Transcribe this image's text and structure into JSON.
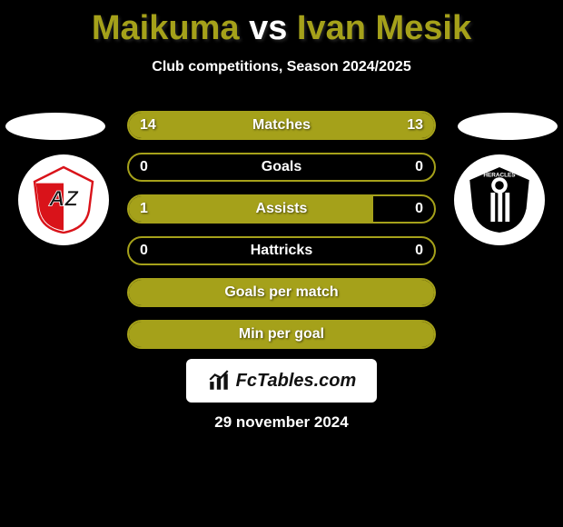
{
  "title": {
    "player1": "Maikuma",
    "vs": "vs",
    "player2": "Ivan Mesik"
  },
  "subtitle": "Club competitions, Season 2024/2025",
  "accent_color": "#a5a11a",
  "stats": [
    {
      "label": "Matches",
      "left_val": "14",
      "right_val": "13",
      "left_pct": 52,
      "right_pct": 48
    },
    {
      "label": "Goals",
      "left_val": "0",
      "right_val": "0",
      "left_pct": 0,
      "right_pct": 0
    },
    {
      "label": "Assists",
      "left_val": "1",
      "right_val": "0",
      "left_pct": 80,
      "right_pct": 0
    },
    {
      "label": "Hattricks",
      "left_val": "0",
      "right_val": "0",
      "left_pct": 0,
      "right_pct": 0
    },
    {
      "label": "Goals per match",
      "left_val": "",
      "right_val": "",
      "left_pct": 100,
      "right_pct": 0
    },
    {
      "label": "Min per goal",
      "left_val": "",
      "right_val": "",
      "left_pct": 100,
      "right_pct": 0
    }
  ],
  "branding": "FcTables.com",
  "date": "29 november 2024",
  "team_left": {
    "name": "AZ",
    "bg": "#ffffff",
    "accent": "#d9131a"
  },
  "team_right": {
    "name": "HERACLES",
    "bg": "#000000",
    "accent": "#ffffff"
  }
}
